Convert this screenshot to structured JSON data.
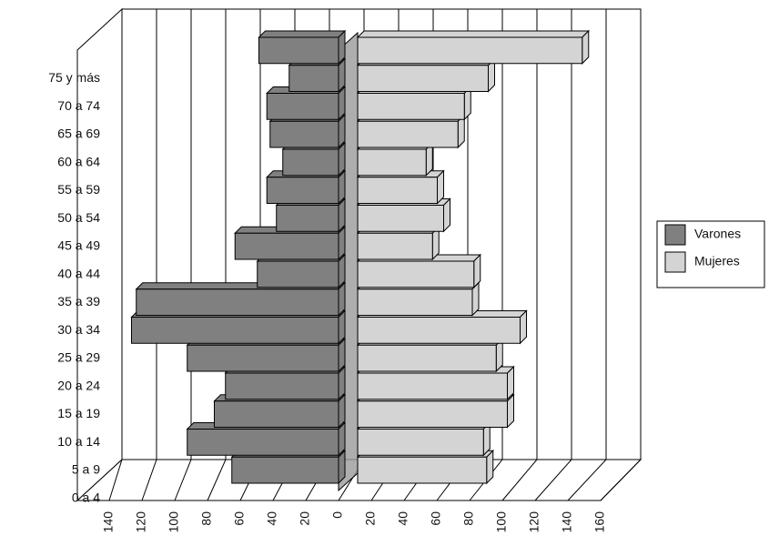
{
  "chart_data": {
    "type": "bar",
    "orientation": "horizontal",
    "stacked": false,
    "categories": [
      "0 a 4",
      "5 a 9",
      "10 a 14",
      "15 a 19",
      "20 a 24",
      "25 a 29",
      "30 a 34",
      "35 a 39",
      "40 a 44",
      "45 a 49",
      "50 a 54",
      "55 a 59",
      "60 a 64",
      "65 a 69",
      "70 a 74",
      "75 y más"
    ],
    "series": [
      {
        "name": "Varones",
        "color": "#808080",
        "values": [
          -67,
          -95,
          -78,
          -71,
          -95,
          -130,
          -127,
          -51,
          -65,
          -39,
          -45,
          -35,
          -43,
          -45,
          -31,
          -50
        ]
      },
      {
        "name": "Mujeres",
        "color": "#d4d4d4",
        "values": [
          81,
          79,
          94,
          94,
          87,
          102,
          72,
          73,
          47,
          54,
          50,
          43,
          63,
          67,
          82,
          141
        ]
      }
    ],
    "xlim": [
      -140,
      160
    ],
    "xticks": [
      {
        "value": -140,
        "label": "140"
      },
      {
        "value": -120,
        "label": "120"
      },
      {
        "value": -100,
        "label": "100"
      },
      {
        "value": -80,
        "label": "80"
      },
      {
        "value": -60,
        "label": "60"
      },
      {
        "value": -40,
        "label": "40"
      },
      {
        "value": -20,
        "label": "20"
      },
      0,
      20,
      40,
      60,
      80,
      100,
      120,
      140,
      160
    ],
    "grid": true,
    "legend": "right"
  }
}
